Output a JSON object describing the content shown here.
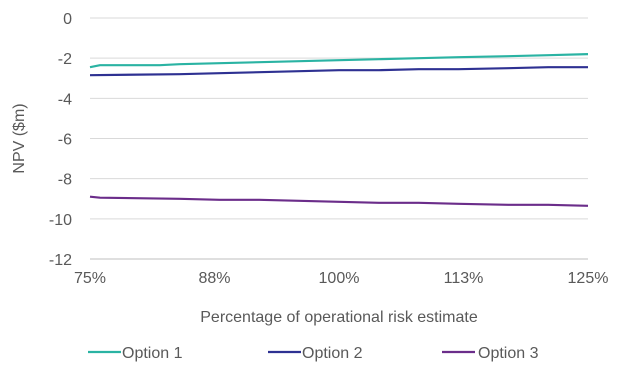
{
  "chart_data": {
    "type": "line",
    "title": "",
    "xlabel": "Percentage of operational risk estimate",
    "ylabel": "NPV ($m)",
    "x_tick_labels": [
      "75%",
      "88%",
      "100%",
      "113%",
      "125%"
    ],
    "x_range": [
      75,
      125
    ],
    "ylim": [
      -12,
      0
    ],
    "y_ticks": [
      0,
      -2,
      -4,
      -6,
      -8,
      -10,
      -12
    ],
    "grid": true,
    "legend_position": "bottom",
    "series": [
      {
        "name": "Option 1",
        "color": "#2ab3a3",
        "x": [
          75,
          76,
          82,
          84,
          88,
          92,
          96,
          100,
          104,
          108,
          112,
          117,
          121,
          125
        ],
        "y": [
          -2.45,
          -2.35,
          -2.35,
          -2.3,
          -2.25,
          -2.2,
          -2.15,
          -2.1,
          -2.05,
          -2.0,
          -1.95,
          -1.9,
          -1.85,
          -1.8
        ]
      },
      {
        "name": "Option 2",
        "color": "#2e3192",
        "x": [
          75,
          84,
          88,
          92,
          96,
          100,
          104,
          108,
          112,
          117,
          121,
          125
        ],
        "y": [
          -2.85,
          -2.8,
          -2.75,
          -2.7,
          -2.65,
          -2.6,
          -2.6,
          -2.55,
          -2.55,
          -2.5,
          -2.45,
          -2.45
        ]
      },
      {
        "name": "Option 3",
        "color": "#6b2d8a",
        "x": [
          75,
          76,
          84,
          88,
          92,
          96,
          100,
          104,
          108,
          112,
          117,
          121,
          125
        ],
        "y": [
          -8.9,
          -8.95,
          -9.0,
          -9.05,
          -9.05,
          -9.1,
          -9.15,
          -9.2,
          -9.2,
          -9.25,
          -9.3,
          -9.3,
          -9.35
        ]
      }
    ]
  }
}
